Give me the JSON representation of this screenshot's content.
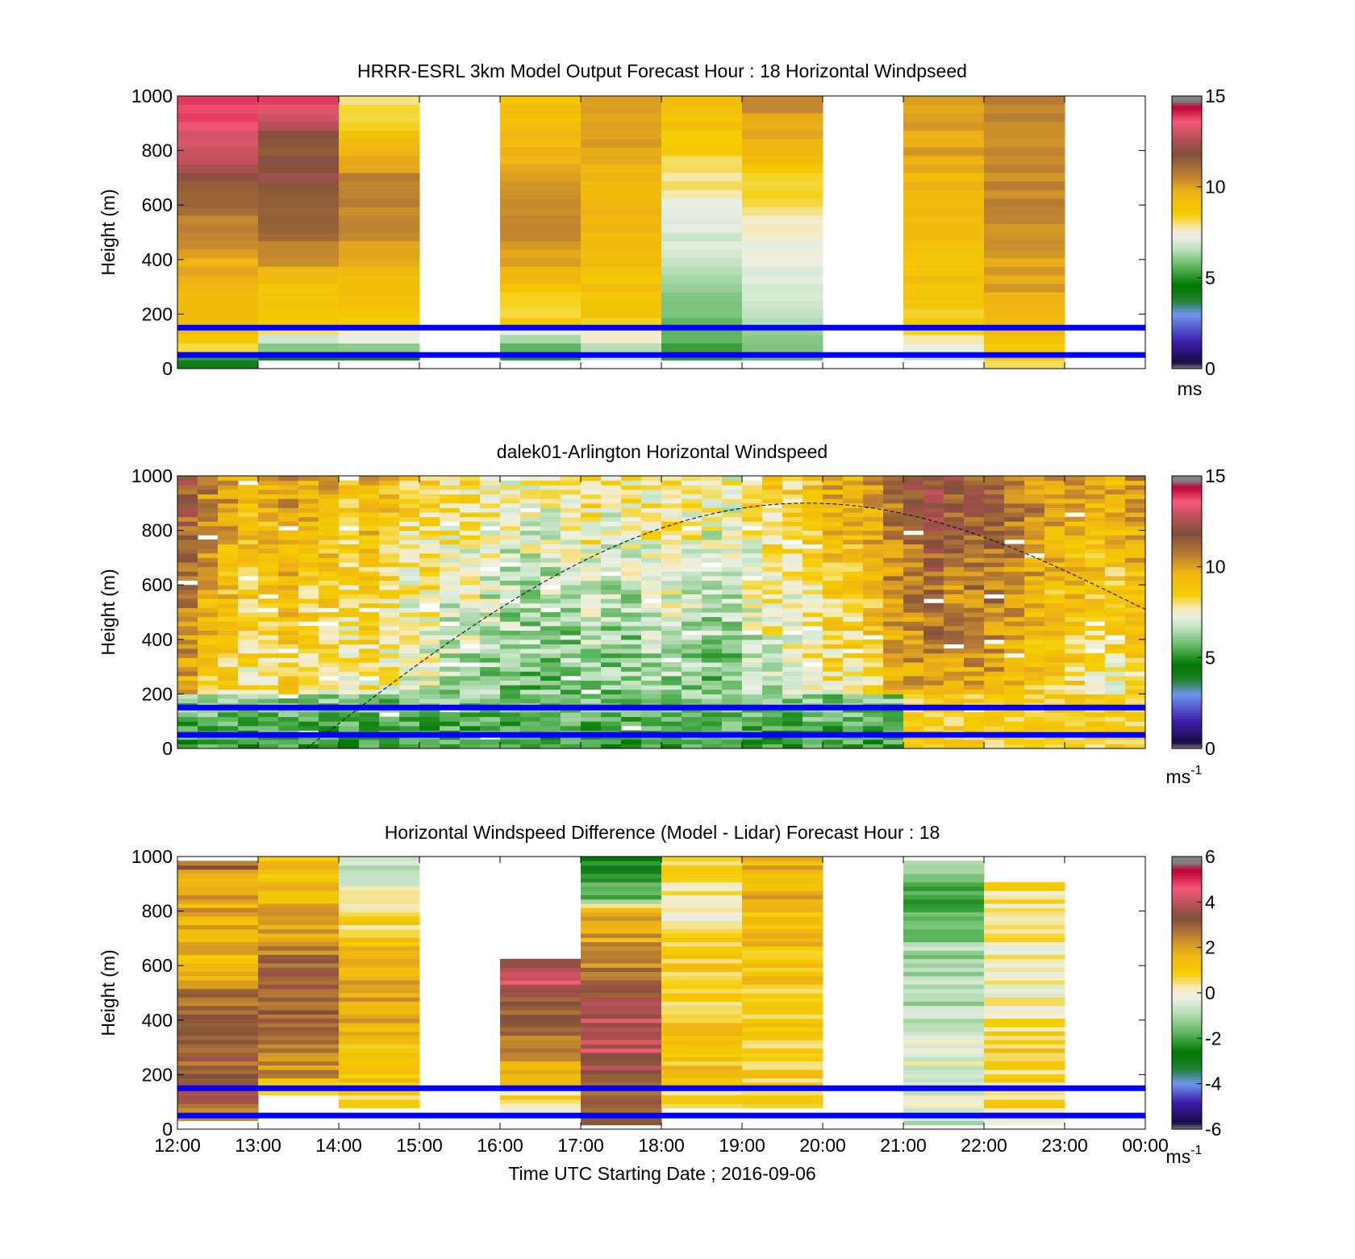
{
  "figure": {
    "xaxis_label": "Time UTC  Starting Date ; 2016-09-06",
    "xticks": [
      "12:00",
      "13:00",
      "14:00",
      "15:00",
      "16:00",
      "17:00",
      "18:00",
      "19:00",
      "20:00",
      "21:00",
      "22:00",
      "23:00",
      "00:00"
    ],
    "boundary_lines_m": [
      150,
      50
    ],
    "boundary_line_color": "#0000ff"
  },
  "chart_data": [
    {
      "type": "heatmap",
      "title": "HRRR-ESRL 3km Model Output   Forecast Hour : 18 Horizontal Windpseed",
      "ylabel": "Height (m)",
      "ylim": [
        0,
        1000
      ],
      "yticks": [
        0,
        200,
        400,
        600,
        800,
        1000
      ],
      "colorbar": {
        "range": [
          0,
          15
        ],
        "ticks": [
          0,
          5,
          10,
          15
        ],
        "unit": "ms",
        "unit_sup": ""
      },
      "x_hours": [
        "12:00",
        "13:00",
        "14:00",
        "15:00",
        "16:00",
        "17:00",
        "18:00",
        "19:00",
        "20:00",
        "21:00",
        "22:00",
        "23:00"
      ],
      "hourly_profiles": [
        [
          [
            1000,
            14
          ],
          [
            800,
            13
          ],
          [
            700,
            12
          ],
          [
            600,
            11
          ],
          [
            500,
            10.5
          ],
          [
            400,
            10
          ],
          [
            300,
            9.5
          ],
          [
            200,
            9.5
          ],
          [
            120,
            9
          ],
          [
            75,
            8
          ],
          [
            60,
            6
          ],
          [
            40,
            5
          ],
          [
            20,
            4
          ]
        ],
        [
          [
            1000,
            14
          ],
          [
            800,
            11.5
          ],
          [
            700,
            12
          ],
          [
            600,
            11.5
          ],
          [
            500,
            11
          ],
          [
            400,
            10.5
          ],
          [
            320,
            9
          ],
          [
            250,
            9
          ],
          [
            150,
            8.5
          ],
          [
            110,
            7
          ],
          [
            80,
            6
          ],
          [
            50,
            5
          ]
        ],
        [
          [
            1000,
            8
          ],
          [
            900,
            8.5
          ],
          [
            800,
            9.5
          ],
          [
            700,
            10.5
          ],
          [
            600,
            10.5
          ],
          [
            500,
            10.5
          ],
          [
            420,
            10
          ],
          [
            350,
            9.5
          ],
          [
            250,
            9
          ],
          [
            180,
            8.5
          ],
          [
            120,
            7.5
          ],
          [
            80,
            6.5
          ],
          [
            50,
            5
          ]
        ],
        null,
        [
          [
            1000,
            9
          ],
          [
            800,
            9.5
          ],
          [
            700,
            10
          ],
          [
            600,
            10.5
          ],
          [
            500,
            10.5
          ],
          [
            420,
            10
          ],
          [
            350,
            9.5
          ],
          [
            250,
            8.5
          ],
          [
            160,
            8.5
          ],
          [
            120,
            6.5
          ],
          [
            80,
            6
          ],
          [
            50,
            5
          ]
        ],
        [
          [
            1000,
            10
          ],
          [
            800,
            10
          ],
          [
            700,
            9.5
          ],
          [
            600,
            9.5
          ],
          [
            500,
            9.5
          ],
          [
            400,
            9
          ],
          [
            300,
            9
          ],
          [
            200,
            9
          ],
          [
            120,
            7.5
          ],
          [
            90,
            7
          ],
          [
            60,
            6.5
          ]
        ],
        [
          [
            1000,
            9
          ],
          [
            900,
            9
          ],
          [
            800,
            8.5
          ],
          [
            700,
            8
          ],
          [
            600,
            7.5
          ],
          [
            500,
            7.2
          ],
          [
            400,
            6.5
          ],
          [
            300,
            6
          ],
          [
            200,
            5.8
          ],
          [
            100,
            5.5
          ],
          [
            50,
            5
          ]
        ],
        [
          [
            1000,
            10.5
          ],
          [
            900,
            10
          ],
          [
            800,
            9.5
          ],
          [
            700,
            8.5
          ],
          [
            600,
            8
          ],
          [
            500,
            7.5
          ],
          [
            400,
            7.3
          ],
          [
            300,
            7
          ],
          [
            200,
            6.5
          ],
          [
            100,
            6
          ],
          [
            50,
            5.5
          ]
        ],
        null,
        [
          [
            1000,
            10
          ],
          [
            800,
            10
          ],
          [
            700,
            9.5
          ],
          [
            600,
            9.5
          ],
          [
            500,
            9.5
          ],
          [
            400,
            9
          ],
          [
            300,
            9
          ],
          [
            200,
            8.5
          ],
          [
            100,
            8
          ],
          [
            60,
            7
          ]
        ],
        [
          [
            1000,
            10.5
          ],
          [
            800,
            10.5
          ],
          [
            700,
            10.5
          ],
          [
            600,
            10.5
          ],
          [
            500,
            10.5
          ],
          [
            400,
            10
          ],
          [
            300,
            10
          ],
          [
            200,
            9.5
          ],
          [
            100,
            9
          ],
          [
            60,
            8.5
          ],
          [
            30,
            8
          ]
        ],
        null
      ]
    },
    {
      "type": "heatmap",
      "title": "dalek01-Arlington  Horizontal Windspeed",
      "ylabel": "Height (m)",
      "ylim": [
        0,
        1000
      ],
      "yticks": [
        0,
        200,
        400,
        600,
        800,
        1000
      ],
      "colorbar": {
        "range": [
          0,
          15
        ],
        "ticks": [
          0,
          5,
          10,
          15
        ],
        "unit": "ms",
        "unit_sup": "-1"
      },
      "x_range_hours": [
        12,
        24
      ],
      "columns_per_hour": 4,
      "column_mean_speed_ms": [
        10.5,
        9.5,
        9,
        8.5,
        8.5,
        9,
        8.5,
        8.5,
        8,
        8.5,
        8,
        7.5,
        7.5,
        7,
        7,
        6.8,
        6.5,
        6.5,
        6.5,
        6.5,
        7,
        6.5,
        6.5,
        6.8,
        7,
        6.8,
        6.5,
        6.3,
        7,
        7.5,
        7.5,
        8,
        8.5,
        8.5,
        9,
        10,
        10.5,
        11,
        10.5,
        10.5,
        10.5,
        10,
        9.5,
        9,
        9,
        8.5,
        8.5,
        9
      ],
      "boundary_layer_curve": {
        "start_hour": 13.6,
        "peak_hour": 19.8,
        "peak_height_m": 900,
        "end_hour": 24,
        "end_height_m": 510
      }
    },
    {
      "type": "heatmap",
      "title": "Horizontal Windspeed Difference (Model - Lidar) Forecast Hour : 18",
      "ylabel": "Height (m)",
      "ylim": [
        0,
        1000
      ],
      "yticks": [
        0,
        200,
        400,
        600,
        800,
        1000
      ],
      "colorbar": {
        "range": [
          -6,
          6
        ],
        "ticks": [
          -6,
          -4,
          -2,
          0,
          2,
          4,
          6
        ],
        "unit": "ms",
        "unit_sup": "-1"
      },
      "x_hours": [
        "12:00",
        "13:00",
        "14:00",
        "15:00",
        "16:00",
        "17:00",
        "18:00",
        "19:00",
        "20:00",
        "21:00",
        "22:00",
        "23:00"
      ],
      "hourly_profiles": [
        [
          [
            990,
            3
          ],
          [
            900,
            2
          ],
          [
            800,
            1.8
          ],
          [
            700,
            1.5
          ],
          [
            600,
            1.6
          ],
          [
            500,
            2.5
          ],
          [
            400,
            2.8
          ],
          [
            300,
            3
          ],
          [
            200,
            3.2
          ],
          [
            100,
            3.8
          ],
          [
            50,
            2
          ]
        ],
        [
          [
            1000,
            1.2
          ],
          [
            900,
            1.5
          ],
          [
            800,
            1.8
          ],
          [
            700,
            2
          ],
          [
            600,
            3.2
          ],
          [
            500,
            3.3
          ],
          [
            400,
            3
          ],
          [
            300,
            2.5
          ],
          [
            200,
            2.2
          ],
          [
            150,
            1
          ]
        ],
        [
          [
            1000,
            -0.3
          ],
          [
            900,
            -0.5
          ],
          [
            800,
            0.5
          ],
          [
            700,
            1
          ],
          [
            600,
            1.5
          ],
          [
            500,
            2
          ],
          [
            400,
            1.8
          ],
          [
            300,
            1.2
          ],
          [
            200,
            1
          ],
          [
            100,
            1
          ]
        ],
        null,
        [
          [
            620,
            3.5
          ],
          [
            550,
            4.5
          ],
          [
            450,
            3
          ],
          [
            350,
            2.5
          ],
          [
            250,
            2
          ],
          [
            150,
            0.8
          ],
          [
            80,
            0.4
          ]
        ],
        [
          [
            1000,
            -2.8
          ],
          [
            900,
            -2.2
          ],
          [
            850,
            -1.5
          ],
          [
            800,
            1.5
          ],
          [
            700,
            2
          ],
          [
            600,
            2.5
          ],
          [
            500,
            3.5
          ],
          [
            400,
            4
          ],
          [
            300,
            4
          ],
          [
            200,
            3.5
          ],
          [
            100,
            3
          ],
          [
            30,
            2.8
          ]
        ],
        [
          [
            1000,
            1.2
          ],
          [
            950,
            0.8
          ],
          [
            900,
            0.5
          ],
          [
            800,
            -0.3
          ],
          [
            700,
            0.5
          ],
          [
            600,
            1
          ],
          [
            500,
            1
          ],
          [
            400,
            1
          ],
          [
            300,
            1.2
          ],
          [
            200,
            1.2
          ],
          [
            100,
            0.6
          ]
        ],
        [
          [
            1000,
            1.5
          ],
          [
            900,
            1.8
          ],
          [
            800,
            1.5
          ],
          [
            700,
            1.5
          ],
          [
            600,
            1.2
          ],
          [
            500,
            1
          ],
          [
            400,
            1
          ],
          [
            300,
            1
          ],
          [
            200,
            1
          ],
          [
            100,
            0.8
          ]
        ],
        null,
        [
          [
            980,
            -1.2
          ],
          [
            900,
            -2.2
          ],
          [
            800,
            -2
          ],
          [
            700,
            -1.2
          ],
          [
            600,
            -1
          ],
          [
            500,
            -0.8
          ],
          [
            400,
            -0.8
          ],
          [
            300,
            -0.3
          ],
          [
            200,
            -0.2
          ],
          [
            100,
            -0.3
          ],
          [
            30,
            -0.5
          ]
        ],
        [
          [
            910,
            0.8
          ],
          [
            800,
            0.3
          ],
          [
            700,
            0.2
          ],
          [
            600,
            0.1
          ],
          [
            500,
            0
          ],
          [
            400,
            0.5
          ],
          [
            300,
            1
          ],
          [
            200,
            0.8
          ],
          [
            100,
            0.5
          ],
          [
            30,
            0.3
          ]
        ],
        null
      ]
    }
  ]
}
